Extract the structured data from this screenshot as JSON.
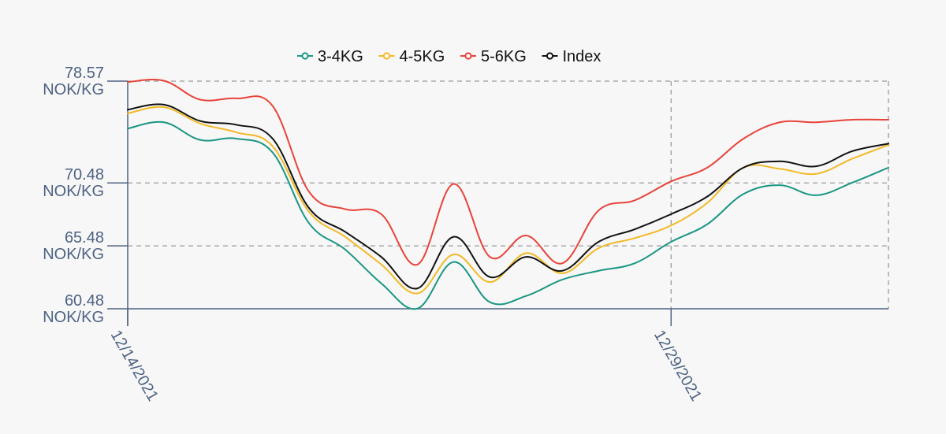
{
  "chart_data": {
    "type": "line",
    "x_labels": [
      "12/14/2021",
      "12/29/2021"
    ],
    "x_label_indices": [
      0,
      15
    ],
    "ytick_values": [
      78.57,
      70.48,
      65.48,
      60.48
    ],
    "ytick_labels": [
      [
        "78.57",
        "NOK/KG"
      ],
      [
        "70.48",
        "NOK/KG"
      ],
      [
        "65.48",
        "NOK/KG"
      ],
      [
        "60.48",
        "NOK/KG"
      ]
    ],
    "ylim": [
      60.48,
      78.57
    ],
    "grid": true,
    "legend_position": "top-center",
    "series": [
      {
        "name": "3-4KG",
        "color": "#1a9682",
        "values": [
          74.8,
          75.3,
          73.9,
          74.0,
          72.9,
          67.3,
          65.2,
          62.5,
          60.5,
          64.2,
          61.0,
          61.5,
          62.8,
          63.5,
          64.1,
          65.8,
          67.2,
          69.6,
          70.3,
          69.5,
          70.5,
          71.7
        ]
      },
      {
        "name": "4-5KG",
        "color": "#f2b924",
        "values": [
          76.0,
          76.5,
          75.2,
          74.5,
          73.4,
          68.2,
          66.2,
          64.0,
          61.7,
          64.8,
          62.6,
          64.9,
          63.3,
          65.3,
          66.1,
          67.1,
          68.9,
          71.7,
          71.6,
          71.2,
          72.4,
          73.5
        ]
      },
      {
        "name": "5-6KG",
        "color": "#e8433a",
        "values": [
          78.5,
          78.6,
          77.1,
          77.2,
          76.6,
          69.8,
          68.4,
          68.0,
          64.0,
          70.4,
          64.6,
          66.3,
          64.1,
          68.3,
          69.1,
          70.6,
          71.7,
          74.0,
          75.3,
          75.3,
          75.5,
          75.5
        ]
      },
      {
        "name": "Index",
        "color": "#111111",
        "values": [
          76.3,
          76.7,
          75.4,
          75.1,
          74.0,
          68.5,
          66.6,
          64.6,
          62.1,
          66.2,
          63.0,
          64.6,
          63.5,
          65.8,
          66.8,
          68.0,
          69.4,
          71.7,
          72.2,
          71.8,
          73.0,
          73.6
        ]
      }
    ]
  }
}
